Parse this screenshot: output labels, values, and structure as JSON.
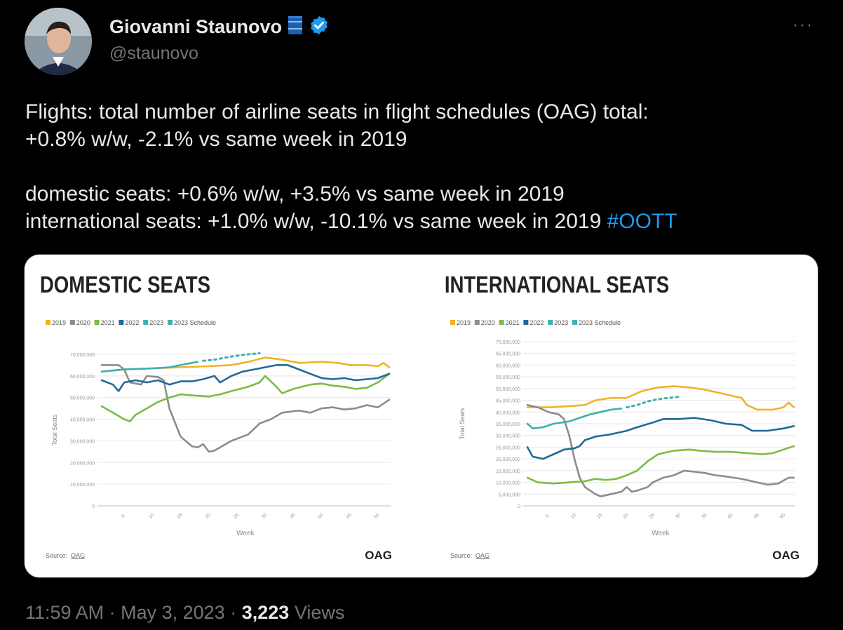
{
  "author": {
    "display_name": "Giovanni Staunovo",
    "handle": "@staunovo",
    "emoji_icon": "oil-barrel-icon",
    "verified_icon": "verified-badge-icon",
    "more_label": "···"
  },
  "tweet": {
    "line1": "Flights: total number of airline seats in flight schedules (OAG) total:",
    "line2": "+0.8% w/w, -2.1% vs same week in 2019",
    "line3": "domestic seats:  +0.6% w/w, +3.5% vs same week in 2019",
    "line4": "international seats: +1.0% w/w, -10.1% vs same week in 2019",
    "hashtag": "#OOTT"
  },
  "meta": {
    "time": "11:59 AM",
    "sep1": "·",
    "date": "May 3, 2023",
    "sep2": "·",
    "views_count": "3,223",
    "views_label": "Views"
  },
  "colors": {
    "2019": "#f0b323",
    "2020": "#8c8c8c",
    "2021": "#7dbb42",
    "2022": "#1f6b9a",
    "2023": "#3fb0b0",
    "2023 Schedule": "#3fb0b0",
    "hashtag": "#1d9bf0"
  },
  "chart_data": [
    {
      "type": "line",
      "title": "DOMESTIC SEATS",
      "xlabel": "Week",
      "ylabel": "Total Seats",
      "xlim": [
        1,
        52
      ],
      "ylim": [
        0,
        70000000
      ],
      "yticks": [
        "0",
        "10,000,000",
        "20,000,000",
        "30,000,000",
        "40,000,000",
        "50,000,000",
        "60,000,000",
        "70,000,000"
      ],
      "xticks": [
        "5",
        "10",
        "15",
        "20",
        "25",
        "30",
        "35",
        "40",
        "45",
        "50"
      ],
      "legend": [
        "2019",
        "2020",
        "2021",
        "2022",
        "2023",
        "2023 Schedule"
      ],
      "legend_position": "top-left",
      "source_label": "Source:",
      "source_link": "OAG",
      "brand": "OAG",
      "series": [
        {
          "name": "2019",
          "points": [
            [
              1,
              62000000
            ],
            [
              5,
              63000000
            ],
            [
              10,
              63500000
            ],
            [
              15,
              64000000
            ],
            [
              20,
              64500000
            ],
            [
              24,
              65000000
            ],
            [
              27,
              66500000
            ],
            [
              30,
              68500000
            ],
            [
              33,
              67500000
            ],
            [
              36,
              66000000
            ],
            [
              40,
              66500000
            ],
            [
              43,
              66000000
            ],
            [
              45,
              65000000
            ],
            [
              48,
              65000000
            ],
            [
              50,
              64500000
            ],
            [
              51,
              66000000
            ],
            [
              52,
              64000000
            ]
          ]
        },
        {
          "name": "2020",
          "points": [
            [
              1,
              65000000
            ],
            [
              4,
              65000000
            ],
            [
              5,
              63000000
            ],
            [
              6,
              57000000
            ],
            [
              8,
              56000000
            ],
            [
              9,
              60000000
            ],
            [
              11,
              59500000
            ],
            [
              12,
              58000000
            ],
            [
              13,
              45000000
            ],
            [
              15,
              32000000
            ],
            [
              17,
              27500000
            ],
            [
              18,
              27000000
            ],
            [
              19,
              28500000
            ],
            [
              20,
              25000000
            ],
            [
              21,
              25500000
            ],
            [
              22,
              27000000
            ],
            [
              24,
              30000000
            ],
            [
              26,
              32000000
            ],
            [
              27,
              33000000
            ],
            [
              29,
              38000000
            ],
            [
              31,
              40000000
            ],
            [
              33,
              43000000
            ],
            [
              36,
              44000000
            ],
            [
              38,
              43000000
            ],
            [
              40,
              45000000
            ],
            [
              42,
              45500000
            ],
            [
              44,
              44500000
            ],
            [
              46,
              45000000
            ],
            [
              48,
              46500000
            ],
            [
              50,
              45500000
            ],
            [
              52,
              49000000
            ]
          ]
        },
        {
          "name": "2021",
          "points": [
            [
              1,
              46000000
            ],
            [
              3,
              43000000
            ],
            [
              5,
              40000000
            ],
            [
              6,
              39000000
            ],
            [
              7,
              42000000
            ],
            [
              9,
              45000000
            ],
            [
              11,
              48000000
            ],
            [
              13,
              50000000
            ],
            [
              15,
              51500000
            ],
            [
              17,
              51000000
            ],
            [
              20,
              50500000
            ],
            [
              22,
              51500000
            ],
            [
              24,
              53000000
            ],
            [
              27,
              55000000
            ],
            [
              29,
              57000000
            ],
            [
              30,
              60000000
            ],
            [
              32,
              55000000
            ],
            [
              33,
              52000000
            ],
            [
              35,
              54000000
            ],
            [
              38,
              56000000
            ],
            [
              40,
              56500000
            ],
            [
              42,
              55500000
            ],
            [
              44,
              55000000
            ],
            [
              46,
              54000000
            ],
            [
              48,
              54500000
            ],
            [
              50,
              57000000
            ],
            [
              52,
              61000000
            ]
          ]
        },
        {
          "name": "2022",
          "points": [
            [
              1,
              58000000
            ],
            [
              3,
              56000000
            ],
            [
              4,
              53000000
            ],
            [
              5,
              57000000
            ],
            [
              7,
              58000000
            ],
            [
              9,
              57000000
            ],
            [
              11,
              58000000
            ],
            [
              13,
              56000000
            ],
            [
              15,
              57500000
            ],
            [
              17,
              57500000
            ],
            [
              19,
              58500000
            ],
            [
              21,
              60000000
            ],
            [
              22,
              57000000
            ],
            [
              24,
              60000000
            ],
            [
              26,
              62000000
            ],
            [
              28,
              63000000
            ],
            [
              30,
              64000000
            ],
            [
              32,
              65000000
            ],
            [
              34,
              65000000
            ],
            [
              36,
              63000000
            ],
            [
              38,
              61000000
            ],
            [
              40,
              59000000
            ],
            [
              42,
              58500000
            ],
            [
              44,
              59000000
            ],
            [
              46,
              58000000
            ],
            [
              48,
              58500000
            ],
            [
              50,
              59000000
            ],
            [
              52,
              61000000
            ]
          ]
        },
        {
          "name": "2023",
          "points": [
            [
              1,
              62000000
            ],
            [
              5,
              63000000
            ],
            [
              10,
              63500000
            ],
            [
              13,
              64000000
            ],
            [
              15,
              65000000
            ],
            [
              17,
              66000000
            ],
            [
              18,
              66500000
            ]
          ]
        },
        {
          "name": "2023 Schedule",
          "points": [
            [
              19,
              67000000
            ],
            [
              21,
              67500000
            ],
            [
              24,
              69000000
            ],
            [
              27,
              70000000
            ],
            [
              29,
              70500000
            ]
          ]
        }
      ]
    },
    {
      "type": "line",
      "title": "INTERNATIONAL SEATS",
      "xlabel": "Week",
      "ylabel": "Total Seats",
      "xlim": [
        1,
        52
      ],
      "ylim": [
        0,
        70000000
      ],
      "yticks": [
        "0",
        "5,000,000",
        "10,000,000",
        "15,000,000",
        "20,000,000",
        "25,000,000",
        "30,000,000",
        "35,000,000",
        "40,000,000",
        "45,000,000",
        "50,000,000",
        "55,000,000",
        "60,000,000",
        "65,000,000",
        "70,000,000"
      ],
      "xticks": [
        "5",
        "10",
        "15",
        "20",
        "25",
        "30",
        "35",
        "40",
        "45",
        "50"
      ],
      "legend": [
        "2019",
        "2020",
        "2021",
        "2022",
        "2023",
        "2023 Schedule"
      ],
      "legend_position": "top-left",
      "source_label": "Source:",
      "source_link": "OAG",
      "brand": "OAG",
      "series": [
        {
          "name": "2019",
          "points": [
            [
              1,
              42000000
            ],
            [
              5,
              42000000
            ],
            [
              9,
              42500000
            ],
            [
              12,
              43000000
            ],
            [
              14,
              45000000
            ],
            [
              17,
              46000000
            ],
            [
              20,
              46000000
            ],
            [
              23,
              49000000
            ],
            [
              26,
              50500000
            ],
            [
              29,
              51000000
            ],
            [
              32,
              50500000
            ],
            [
              35,
              49500000
            ],
            [
              38,
              48000000
            ],
            [
              40,
              47000000
            ],
            [
              42,
              46000000
            ],
            [
              43,
              43000000
            ],
            [
              45,
              41000000
            ],
            [
              48,
              41000000
            ],
            [
              50,
              42000000
            ],
            [
              51,
              44000000
            ],
            [
              52,
              42000000
            ]
          ]
        },
        {
          "name": "2020",
          "points": [
            [
              1,
              43000000
            ],
            [
              3,
              42000000
            ],
            [
              5,
              40000000
            ],
            [
              7,
              39000000
            ],
            [
              8,
              37000000
            ],
            [
              9,
              30000000
            ],
            [
              10,
              20000000
            ],
            [
              11,
              12000000
            ],
            [
              12,
              8000000
            ],
            [
              14,
              5000000
            ],
            [
              15,
              4000000
            ],
            [
              17,
              5000000
            ],
            [
              19,
              6000000
            ],
            [
              20,
              8000000
            ],
            [
              21,
              6000000
            ],
            [
              22,
              6500000
            ],
            [
              24,
              8000000
            ],
            [
              25,
              10000000
            ],
            [
              27,
              12000000
            ],
            [
              29,
              13000000
            ],
            [
              31,
              15000000
            ],
            [
              33,
              14500000
            ],
            [
              35,
              14000000
            ],
            [
              37,
              13000000
            ],
            [
              39,
              12500000
            ],
            [
              42,
              11500000
            ],
            [
              45,
              10000000
            ],
            [
              47,
              9000000
            ],
            [
              49,
              9500000
            ],
            [
              51,
              12000000
            ],
            [
              52,
              12000000
            ]
          ]
        },
        {
          "name": "2021",
          "points": [
            [
              1,
              12000000
            ],
            [
              3,
              10000000
            ],
            [
              6,
              9500000
            ],
            [
              9,
              10000000
            ],
            [
              12,
              10500000
            ],
            [
              14,
              11500000
            ],
            [
              16,
              11000000
            ],
            [
              18,
              11500000
            ],
            [
              20,
              13000000
            ],
            [
              22,
              15000000
            ],
            [
              24,
              19000000
            ],
            [
              26,
              22000000
            ],
            [
              29,
              23500000
            ],
            [
              32,
              24000000
            ],
            [
              34,
              23500000
            ],
            [
              37,
              23000000
            ],
            [
              40,
              23000000
            ],
            [
              43,
              22500000
            ],
            [
              46,
              22000000
            ],
            [
              48,
              22500000
            ],
            [
              50,
              24000000
            ],
            [
              52,
              25500000
            ]
          ]
        },
        {
          "name": "2022",
          "points": [
            [
              1,
              25000000
            ],
            [
              2,
              21000000
            ],
            [
              4,
              20000000
            ],
            [
              6,
              22000000
            ],
            [
              8,
              24000000
            ],
            [
              10,
              24500000
            ],
            [
              11,
              25500000
            ],
            [
              12,
              28000000
            ],
            [
              14,
              29500000
            ],
            [
              17,
              30500000
            ],
            [
              20,
              32000000
            ],
            [
              22,
              33500000
            ],
            [
              25,
              35500000
            ],
            [
              27,
              37000000
            ],
            [
              30,
              37000000
            ],
            [
              33,
              37500000
            ],
            [
              36,
              36500000
            ],
            [
              39,
              35000000
            ],
            [
              42,
              34500000
            ],
            [
              44,
              32000000
            ],
            [
              47,
              32000000
            ],
            [
              50,
              33000000
            ],
            [
              52,
              34000000
            ]
          ]
        },
        {
          "name": "2023",
          "points": [
            [
              1,
              35000000
            ],
            [
              2,
              33000000
            ],
            [
              4,
              33500000
            ],
            [
              6,
              35000000
            ],
            [
              9,
              36000000
            ],
            [
              11,
              37500000
            ],
            [
              13,
              39000000
            ],
            [
              15,
              40000000
            ],
            [
              17,
              41000000
            ],
            [
              19,
              41500000
            ]
          ]
        },
        {
          "name": "2023 Schedule",
          "points": [
            [
              20,
              42000000
            ],
            [
              22,
              43000000
            ],
            [
              24,
              44500000
            ],
            [
              26,
              45500000
            ],
            [
              28,
              46000000
            ],
            [
              30,
              46500000
            ]
          ]
        }
      ]
    }
  ]
}
